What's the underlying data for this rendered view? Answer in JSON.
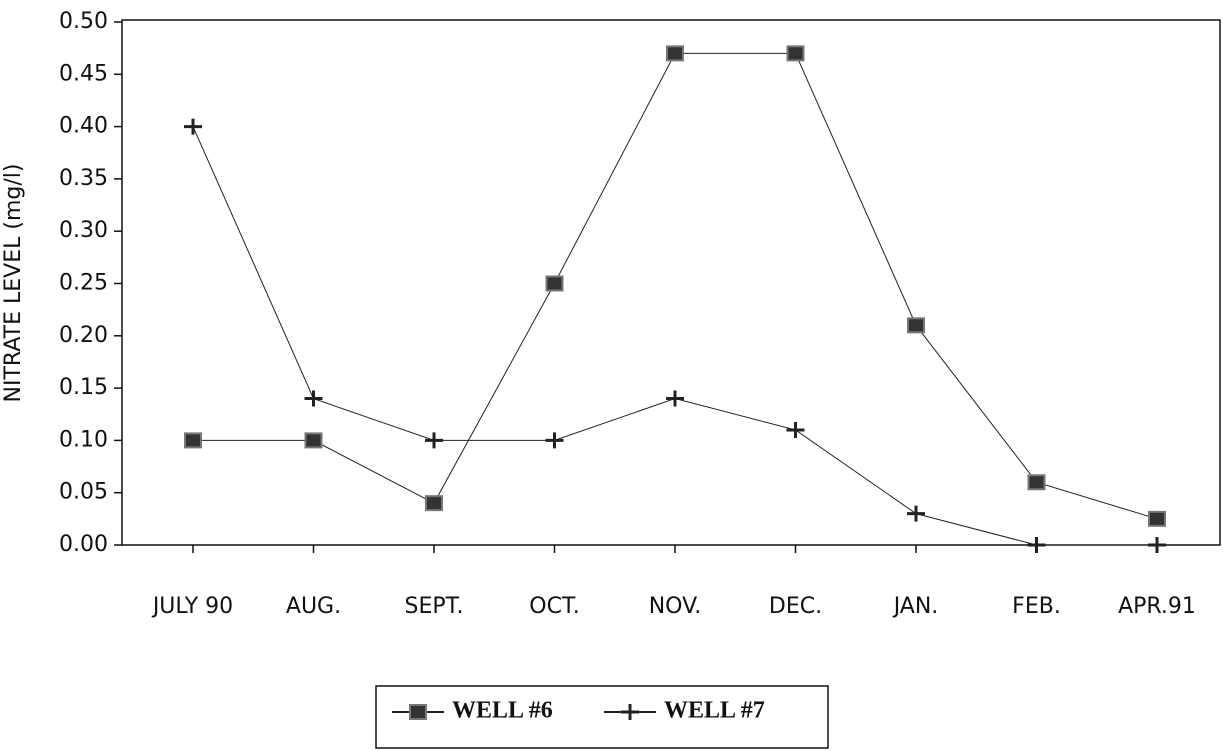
{
  "chart_data": {
    "type": "line",
    "y_label": "NITRATE LEVEL (mg/l)",
    "categories": [
      "JULY 90",
      "AUG.",
      "SEPT.",
      "OCT.",
      "NOV.",
      "DEC.",
      "JAN.",
      "FEB.",
      "APR.91"
    ],
    "series": [
      {
        "name": "WELL #6",
        "color": "#222222",
        "marker": "square",
        "values": [
          0.1,
          0.1,
          0.04,
          0.25,
          0.47,
          0.47,
          0.21,
          0.06,
          0.025
        ]
      },
      {
        "name": "WELL #7",
        "color": "#222222",
        "marker": "plus",
        "values": [
          0.4,
          0.14,
          0.1,
          0.1,
          0.14,
          0.11,
          0.03,
          0.0,
          0.0
        ]
      }
    ],
    "ylim": [
      0,
      0.5
    ],
    "yticks": [
      {
        "value": 0,
        "label": "0.00"
      },
      {
        "value": 0.05,
        "label": "0.05"
      },
      {
        "value": 0.1,
        "label": "0.10"
      },
      {
        "value": 0.15,
        "label": "0.15"
      },
      {
        "value": 0.2,
        "label": "0.20"
      },
      {
        "value": 0.25,
        "label": "0.25"
      },
      {
        "value": 0.3,
        "label": "0.30"
      },
      {
        "value": 0.35,
        "label": "0.35"
      },
      {
        "value": 0.4,
        "label": "0.40"
      },
      {
        "value": 0.45,
        "label": "0.45"
      },
      {
        "value": 0.5,
        "label": "0.50"
      }
    ],
    "legend": "bottom"
  }
}
